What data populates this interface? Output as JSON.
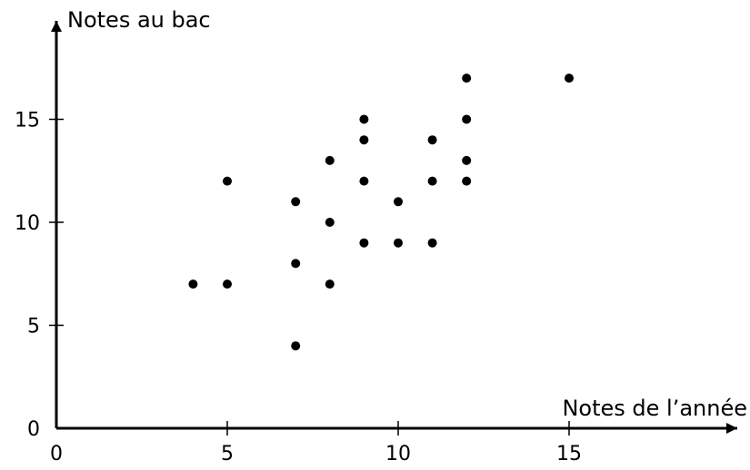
{
  "chart_data": {
    "type": "scatter",
    "xlabel": "Notes de l’année",
    "ylabel": "Notes au bac",
    "xlim": [
      0,
      20
    ],
    "ylim": [
      0,
      20
    ],
    "xticks": [
      0,
      5,
      10,
      15
    ],
    "yticks": [
      0,
      5,
      10,
      15
    ],
    "grid": false,
    "points": [
      {
        "x": 4,
        "y": 7
      },
      {
        "x": 5,
        "y": 7
      },
      {
        "x": 5,
        "y": 12
      },
      {
        "x": 7,
        "y": 4
      },
      {
        "x": 7,
        "y": 8
      },
      {
        "x": 7,
        "y": 11
      },
      {
        "x": 8,
        "y": 7
      },
      {
        "x": 8,
        "y": 10
      },
      {
        "x": 8,
        "y": 13
      },
      {
        "x": 9,
        "y": 9
      },
      {
        "x": 9,
        "y": 12
      },
      {
        "x": 9,
        "y": 14
      },
      {
        "x": 9,
        "y": 15
      },
      {
        "x": 10,
        "y": 9
      },
      {
        "x": 10,
        "y": 11
      },
      {
        "x": 11,
        "y": 9
      },
      {
        "x": 11,
        "y": 12
      },
      {
        "x": 11,
        "y": 14
      },
      {
        "x": 12,
        "y": 12
      },
      {
        "x": 12,
        "y": 13
      },
      {
        "x": 12,
        "y": 15
      },
      {
        "x": 12,
        "y": 17
      },
      {
        "x": 15,
        "y": 17
      }
    ]
  }
}
